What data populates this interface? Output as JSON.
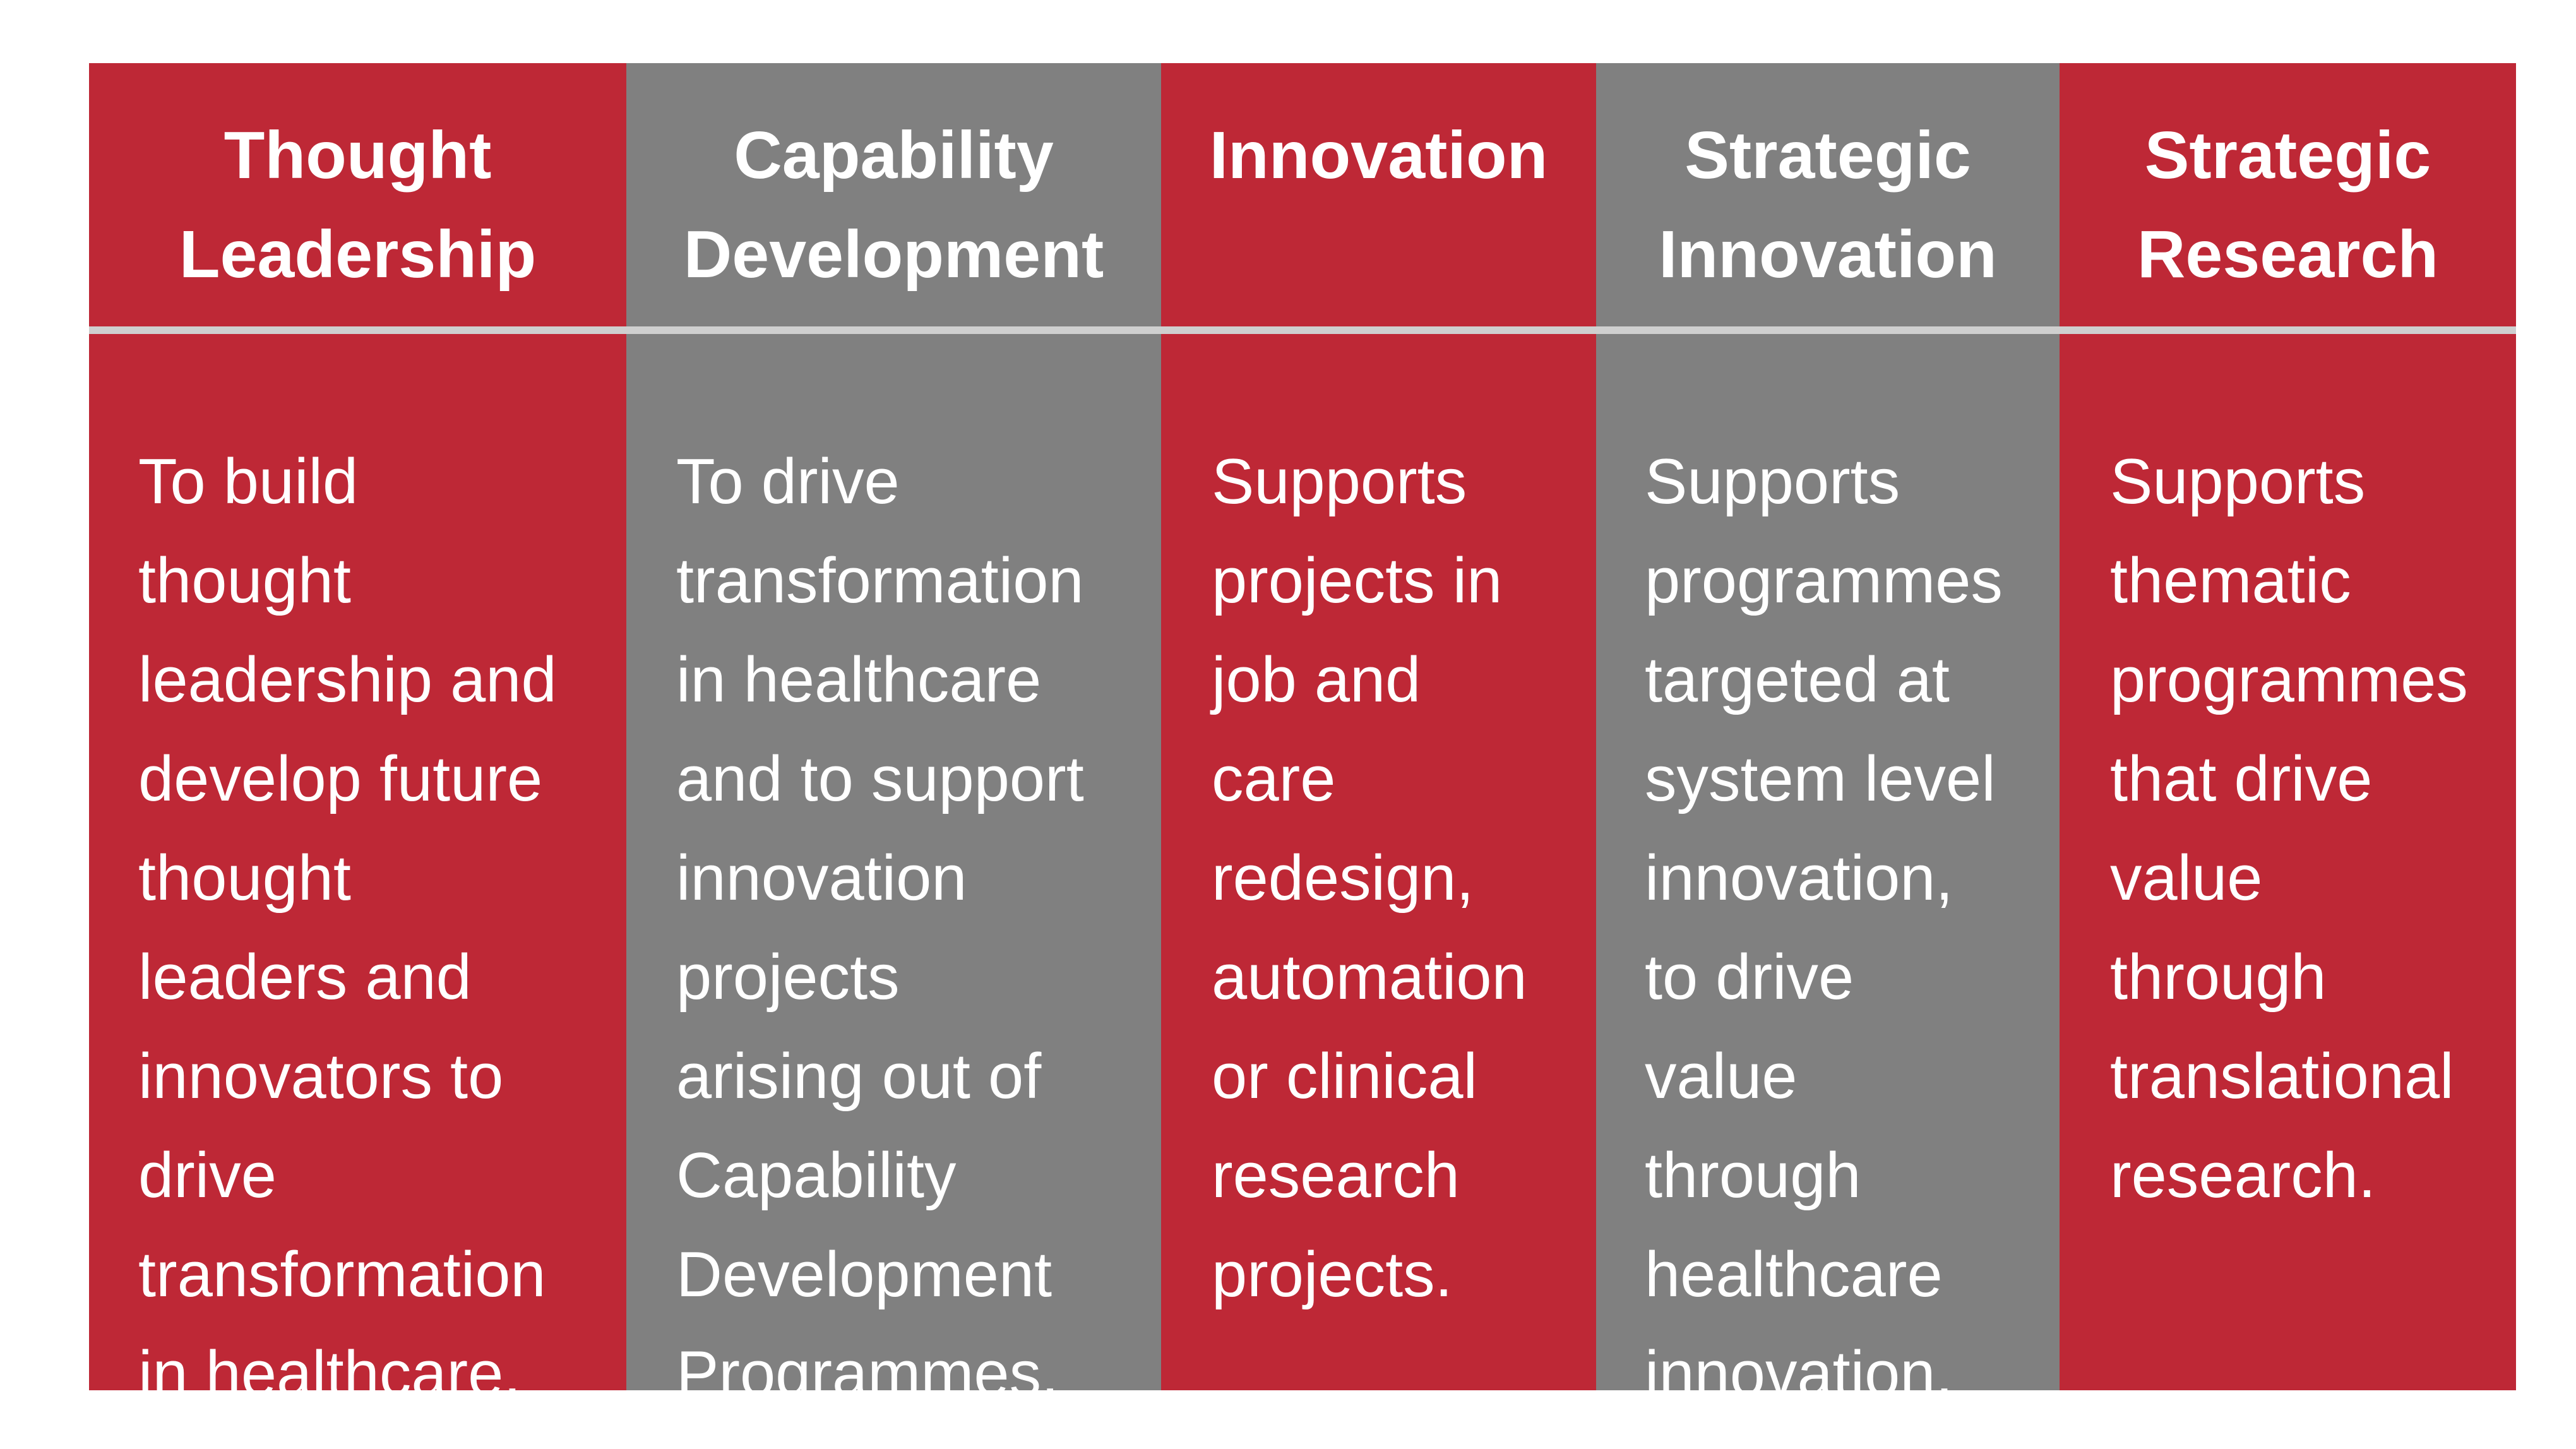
{
  "columns": [
    {
      "title": "Thought\nLeadership",
      "description": "To build\nthought\nleadership and\ndevelop future\nthought\nleaders and\ninnovators to\ndrive\ntransformation\nin healthcare."
    },
    {
      "title": "Capability\nDevelopment",
      "description": "To drive\ntransformation\nin healthcare\nand to support\ninnovation\nprojects\narising out of\nCapability\nDevelopment\nProgrammes."
    },
    {
      "title": "Innovation",
      "description": "Supports\nprojects in\njob and\ncare\nredesign,\nautomation\nor clinical\nresearch\nprojects."
    },
    {
      "title": "Strategic\nInnovation",
      "description": "Supports\nprogrammes\ntargeted at\nsystem level\ninnovation,\nto drive\nvalue\nthrough\nhealthcare\ninnovation."
    },
    {
      "title": "Strategic\nResearch",
      "description": "Supports\nthematic\nprogrammes\nthat drive\nvalue\nthrough\ntranslational\nresearch."
    }
  ],
  "colors": {
    "red": "#be2836",
    "gray": "#808080",
    "divider": "#cfcfcf",
    "text": "#ffffff"
  }
}
